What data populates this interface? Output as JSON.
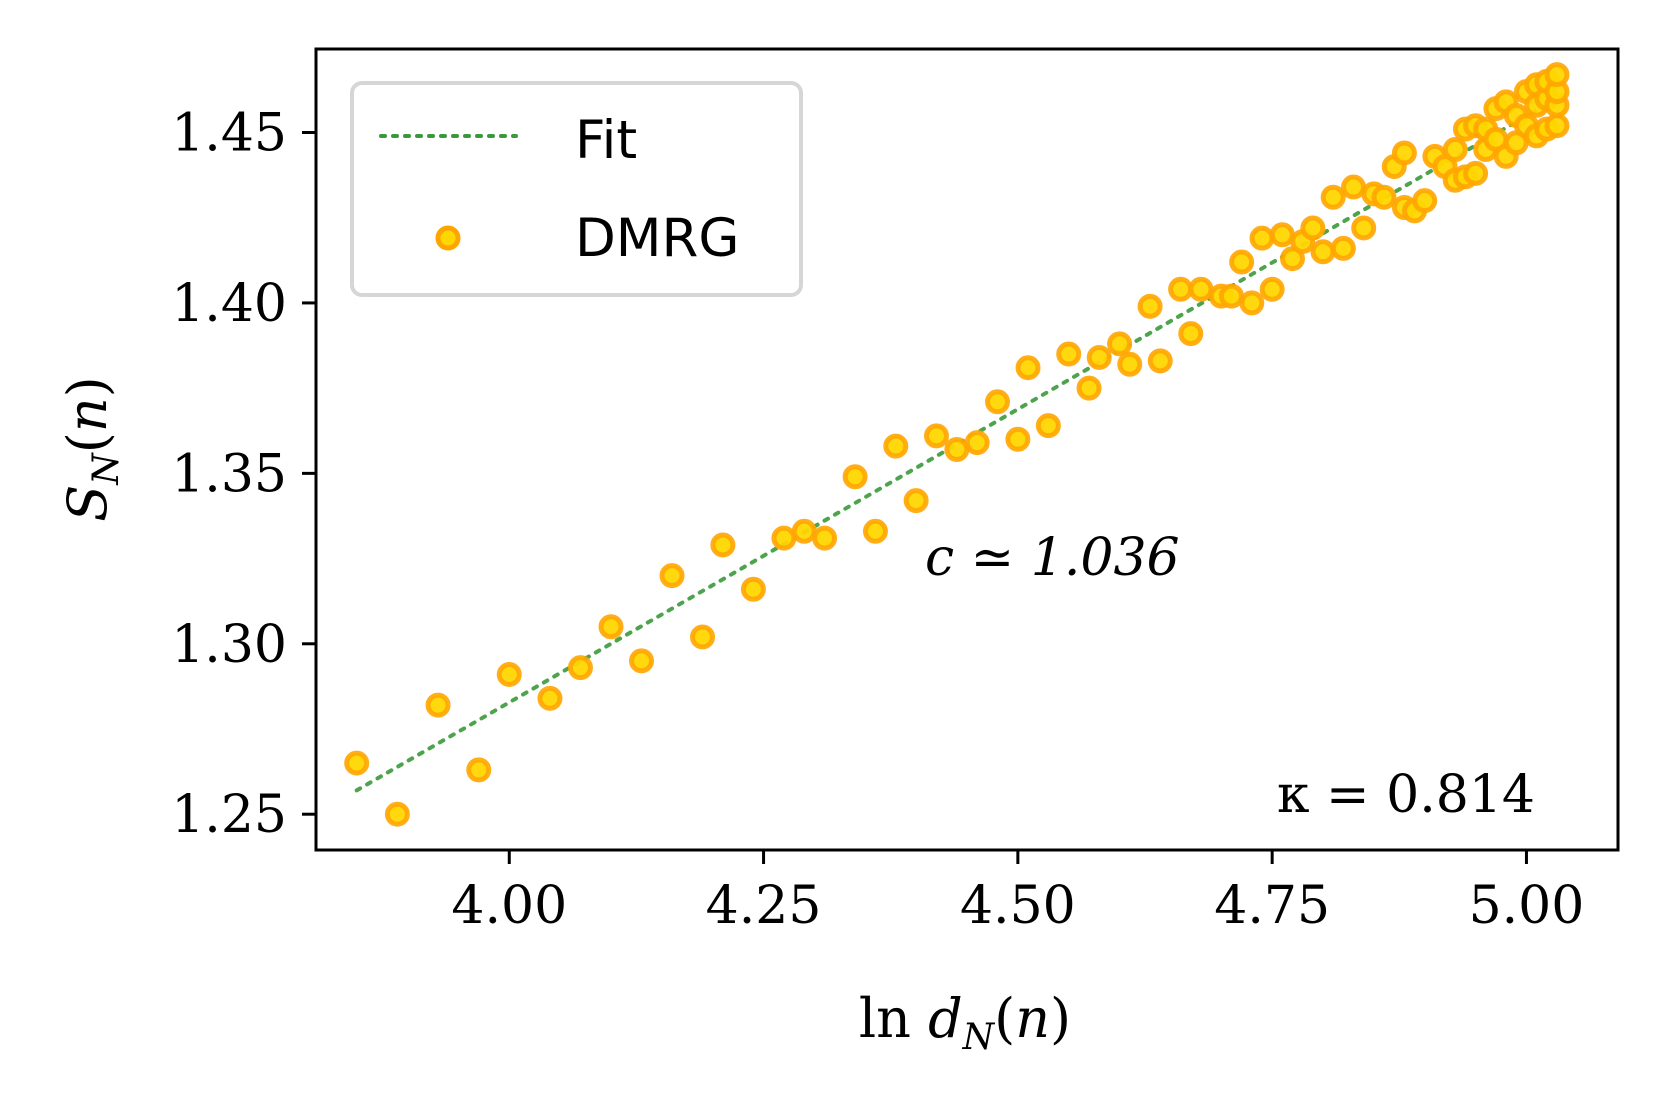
{
  "chart_data": {
    "type": "scatter",
    "title": "",
    "xlabel": "ln d_N(n)",
    "ylabel": "S_N(n)",
    "xlim": [
      3.81,
      5.09
    ],
    "ylim": [
      1.2395,
      1.4745
    ],
    "xticks": [
      4.0,
      4.25,
      4.5,
      4.75,
      5.0
    ],
    "xtick_labels": [
      "4.00",
      "4.25",
      "4.50",
      "4.75",
      "5.00"
    ],
    "yticks": [
      1.25,
      1.3,
      1.35,
      1.4,
      1.45
    ],
    "ytick_labels": [
      "1.25",
      "1.30",
      "1.35",
      "1.40",
      "1.45"
    ],
    "grid": false,
    "legend": {
      "position": "top-left",
      "entries": [
        "Fit",
        "DMRG"
      ]
    },
    "annotations": [
      {
        "text": "c ≃ 1.036",
        "x": 4.4,
        "y": 1.3215
      },
      {
        "text": "κ = 0.814",
        "x": 4.755,
        "y": 1.2515
      }
    ],
    "series": [
      {
        "name": "Fit",
        "kind": "line",
        "style": "dotted",
        "color": "#3a9a3a",
        "x": [
          3.85,
          5.03
        ],
        "y": [
          1.257,
          1.46
        ]
      },
      {
        "name": "DMRG",
        "kind": "scatter",
        "color": "#ffb300",
        "edge_color": "#ffa500",
        "face_color": "#ffd700",
        "x": [
          3.85,
          3.89,
          3.93,
          3.97,
          4.0,
          4.04,
          4.07,
          4.1,
          4.13,
          4.16,
          4.19,
          4.21,
          4.24,
          4.27,
          4.29,
          4.31,
          4.34,
          4.36,
          4.38,
          4.4,
          4.42,
          4.44,
          4.46,
          4.48,
          4.5,
          4.51,
          4.53,
          4.55,
          4.57,
          4.58,
          4.6,
          4.61,
          4.63,
          4.64,
          4.66,
          4.67,
          4.68,
          4.7,
          4.71,
          4.72,
          4.73,
          4.74,
          4.75,
          4.76,
          4.77,
          4.78,
          4.79,
          4.8,
          4.81,
          4.82,
          4.83,
          4.84,
          4.85,
          4.86,
          4.87,
          4.88,
          4.88,
          4.89,
          4.9,
          4.91,
          4.92,
          4.93,
          4.93,
          4.94,
          4.94,
          4.95,
          4.95,
          4.96,
          4.96,
          4.97,
          4.97,
          4.98,
          4.98,
          4.99,
          4.99,
          5.0,
          5.0,
          5.01,
          5.01,
          5.01,
          5.02,
          5.02,
          5.02,
          5.03,
          5.03,
          5.03,
          5.03
        ],
        "y": [
          1.265,
          1.25,
          1.282,
          1.263,
          1.291,
          1.284,
          1.293,
          1.305,
          1.295,
          1.32,
          1.302,
          1.329,
          1.316,
          1.331,
          1.333,
          1.331,
          1.349,
          1.333,
          1.358,
          1.342,
          1.361,
          1.357,
          1.359,
          1.371,
          1.36,
          1.381,
          1.364,
          1.385,
          1.375,
          1.384,
          1.388,
          1.382,
          1.399,
          1.383,
          1.404,
          1.391,
          1.404,
          1.402,
          1.402,
          1.412,
          1.4,
          1.419,
          1.404,
          1.42,
          1.413,
          1.418,
          1.422,
          1.415,
          1.431,
          1.416,
          1.434,
          1.422,
          1.432,
          1.431,
          1.44,
          1.428,
          1.444,
          1.427,
          1.43,
          1.443,
          1.44,
          1.445,
          1.436,
          1.451,
          1.437,
          1.452,
          1.438,
          1.445,
          1.451,
          1.448,
          1.457,
          1.443,
          1.459,
          1.447,
          1.455,
          1.452,
          1.462,
          1.449,
          1.458,
          1.464,
          1.451,
          1.46,
          1.465,
          1.452,
          1.458,
          1.462,
          1.467
        ]
      }
    ]
  }
}
